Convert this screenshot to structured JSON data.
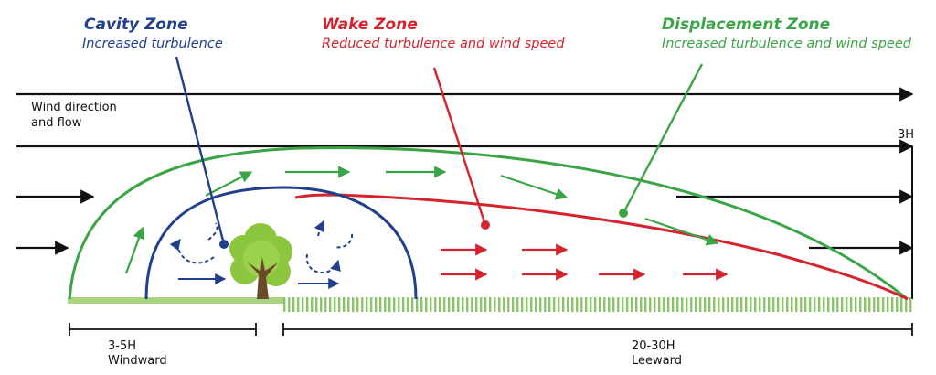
{
  "zones": {
    "cavity": {
      "title": "Cavity Zone",
      "subtitle": "Increased turbulence",
      "color": "#203f8c"
    },
    "wake": {
      "title": "Wake Zone",
      "subtitle": "Reduced turbulence and wind speed",
      "color": "#d4232d"
    },
    "displacement": {
      "title": "Displacement Zone",
      "subtitle": "Increased turbulence and wind speed",
      "color": "#3aa447"
    }
  },
  "labels": {
    "wind_line1": "Wind direction",
    "wind_line2": "and flow",
    "height": "3H"
  },
  "measures": {
    "windward_value": "3-5H",
    "windward_label": "Windward",
    "leeward_value": "20-30H",
    "leeward_label": "Leeward"
  },
  "colors": {
    "ground": "#a9d37f",
    "ground_hatch": "#8cc46a",
    "tree_foliage": "#8cc63f",
    "tree_trunk": "#6b4a2b",
    "flow": "#111111"
  }
}
